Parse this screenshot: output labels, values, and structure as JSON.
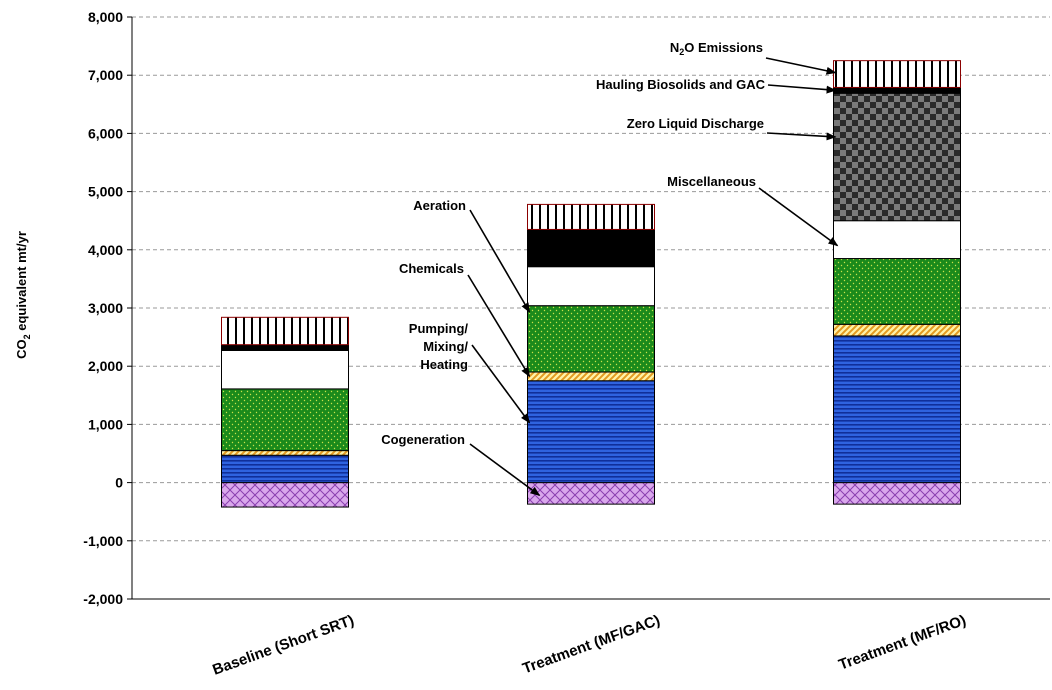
{
  "chart_data": {
    "type": "bar",
    "stacked": true,
    "title": "",
    "xlabel": "",
    "ylabel": "CO2 equivalent mt/yr",
    "ylabel_parts": [
      "CO",
      "2",
      " equivalent mt/yr"
    ],
    "ylim": [
      -2000,
      8000
    ],
    "ytick_step": 1000,
    "yticks": [
      "-2,000",
      "-1,000",
      "0",
      "1,000",
      "2,000",
      "3,000",
      "4,000",
      "5,000",
      "6,000",
      "7,000",
      "8,000"
    ],
    "grid": true,
    "legend": "none",
    "categories": [
      "Baseline (Short SRT)",
      "Treatment (MF/GAC)",
      "Treatment (MF/RO)"
    ],
    "series": [
      {
        "name": "Cogeneration",
        "pattern": "crosshatch-violet",
        "values": [
          -420,
          -370,
          -370
        ]
      },
      {
        "name": "Pumping/Mixing/Heating",
        "pattern": "blue-stripes",
        "values": [
          470,
          1750,
          2520
        ]
      },
      {
        "name": "Chemicals",
        "pattern": "yellow-diagonal",
        "values": [
          80,
          150,
          200
        ]
      },
      {
        "name": "Aeration",
        "pattern": "green-dots",
        "values": [
          1060,
          1140,
          1130
        ]
      },
      {
        "name": "Miscellaneous",
        "pattern": "white",
        "values": [
          660,
          670,
          650
        ]
      },
      {
        "name": "Zero Liquid Discharge",
        "pattern": "checker-gray",
        "values": [
          0,
          0,
          2190
        ]
      },
      {
        "name": "Hauling Biosolids and GAC",
        "pattern": "black",
        "values": [
          100,
          640,
          100
        ]
      },
      {
        "name": "N2O Emissions",
        "pattern": "vertical-lines",
        "values": [
          470,
          430,
          460
        ]
      }
    ],
    "annotations": [
      {
        "label": "N",
        "sub": "2",
        "rest": "O Emissions",
        "bar": 2,
        "series": 7
      },
      {
        "label": "Hauling Biosolids and GAC",
        "bar": 2,
        "series": 6
      },
      {
        "label": "Zero Liquid Discharge",
        "bar": 2,
        "series": 5
      },
      {
        "label": "Miscellaneous",
        "bar": 2,
        "series": 4
      },
      {
        "label": "Aeration",
        "bar": 1,
        "series": 3
      },
      {
        "label": "Chemicals",
        "bar": 1,
        "series": 2
      },
      {
        "label": "Pumping/",
        "line2": "Mixing/",
        "line3": "Heating",
        "bar": 1,
        "series": 1
      },
      {
        "label": "Cogeneration",
        "bar": 1,
        "series": 0
      }
    ]
  }
}
